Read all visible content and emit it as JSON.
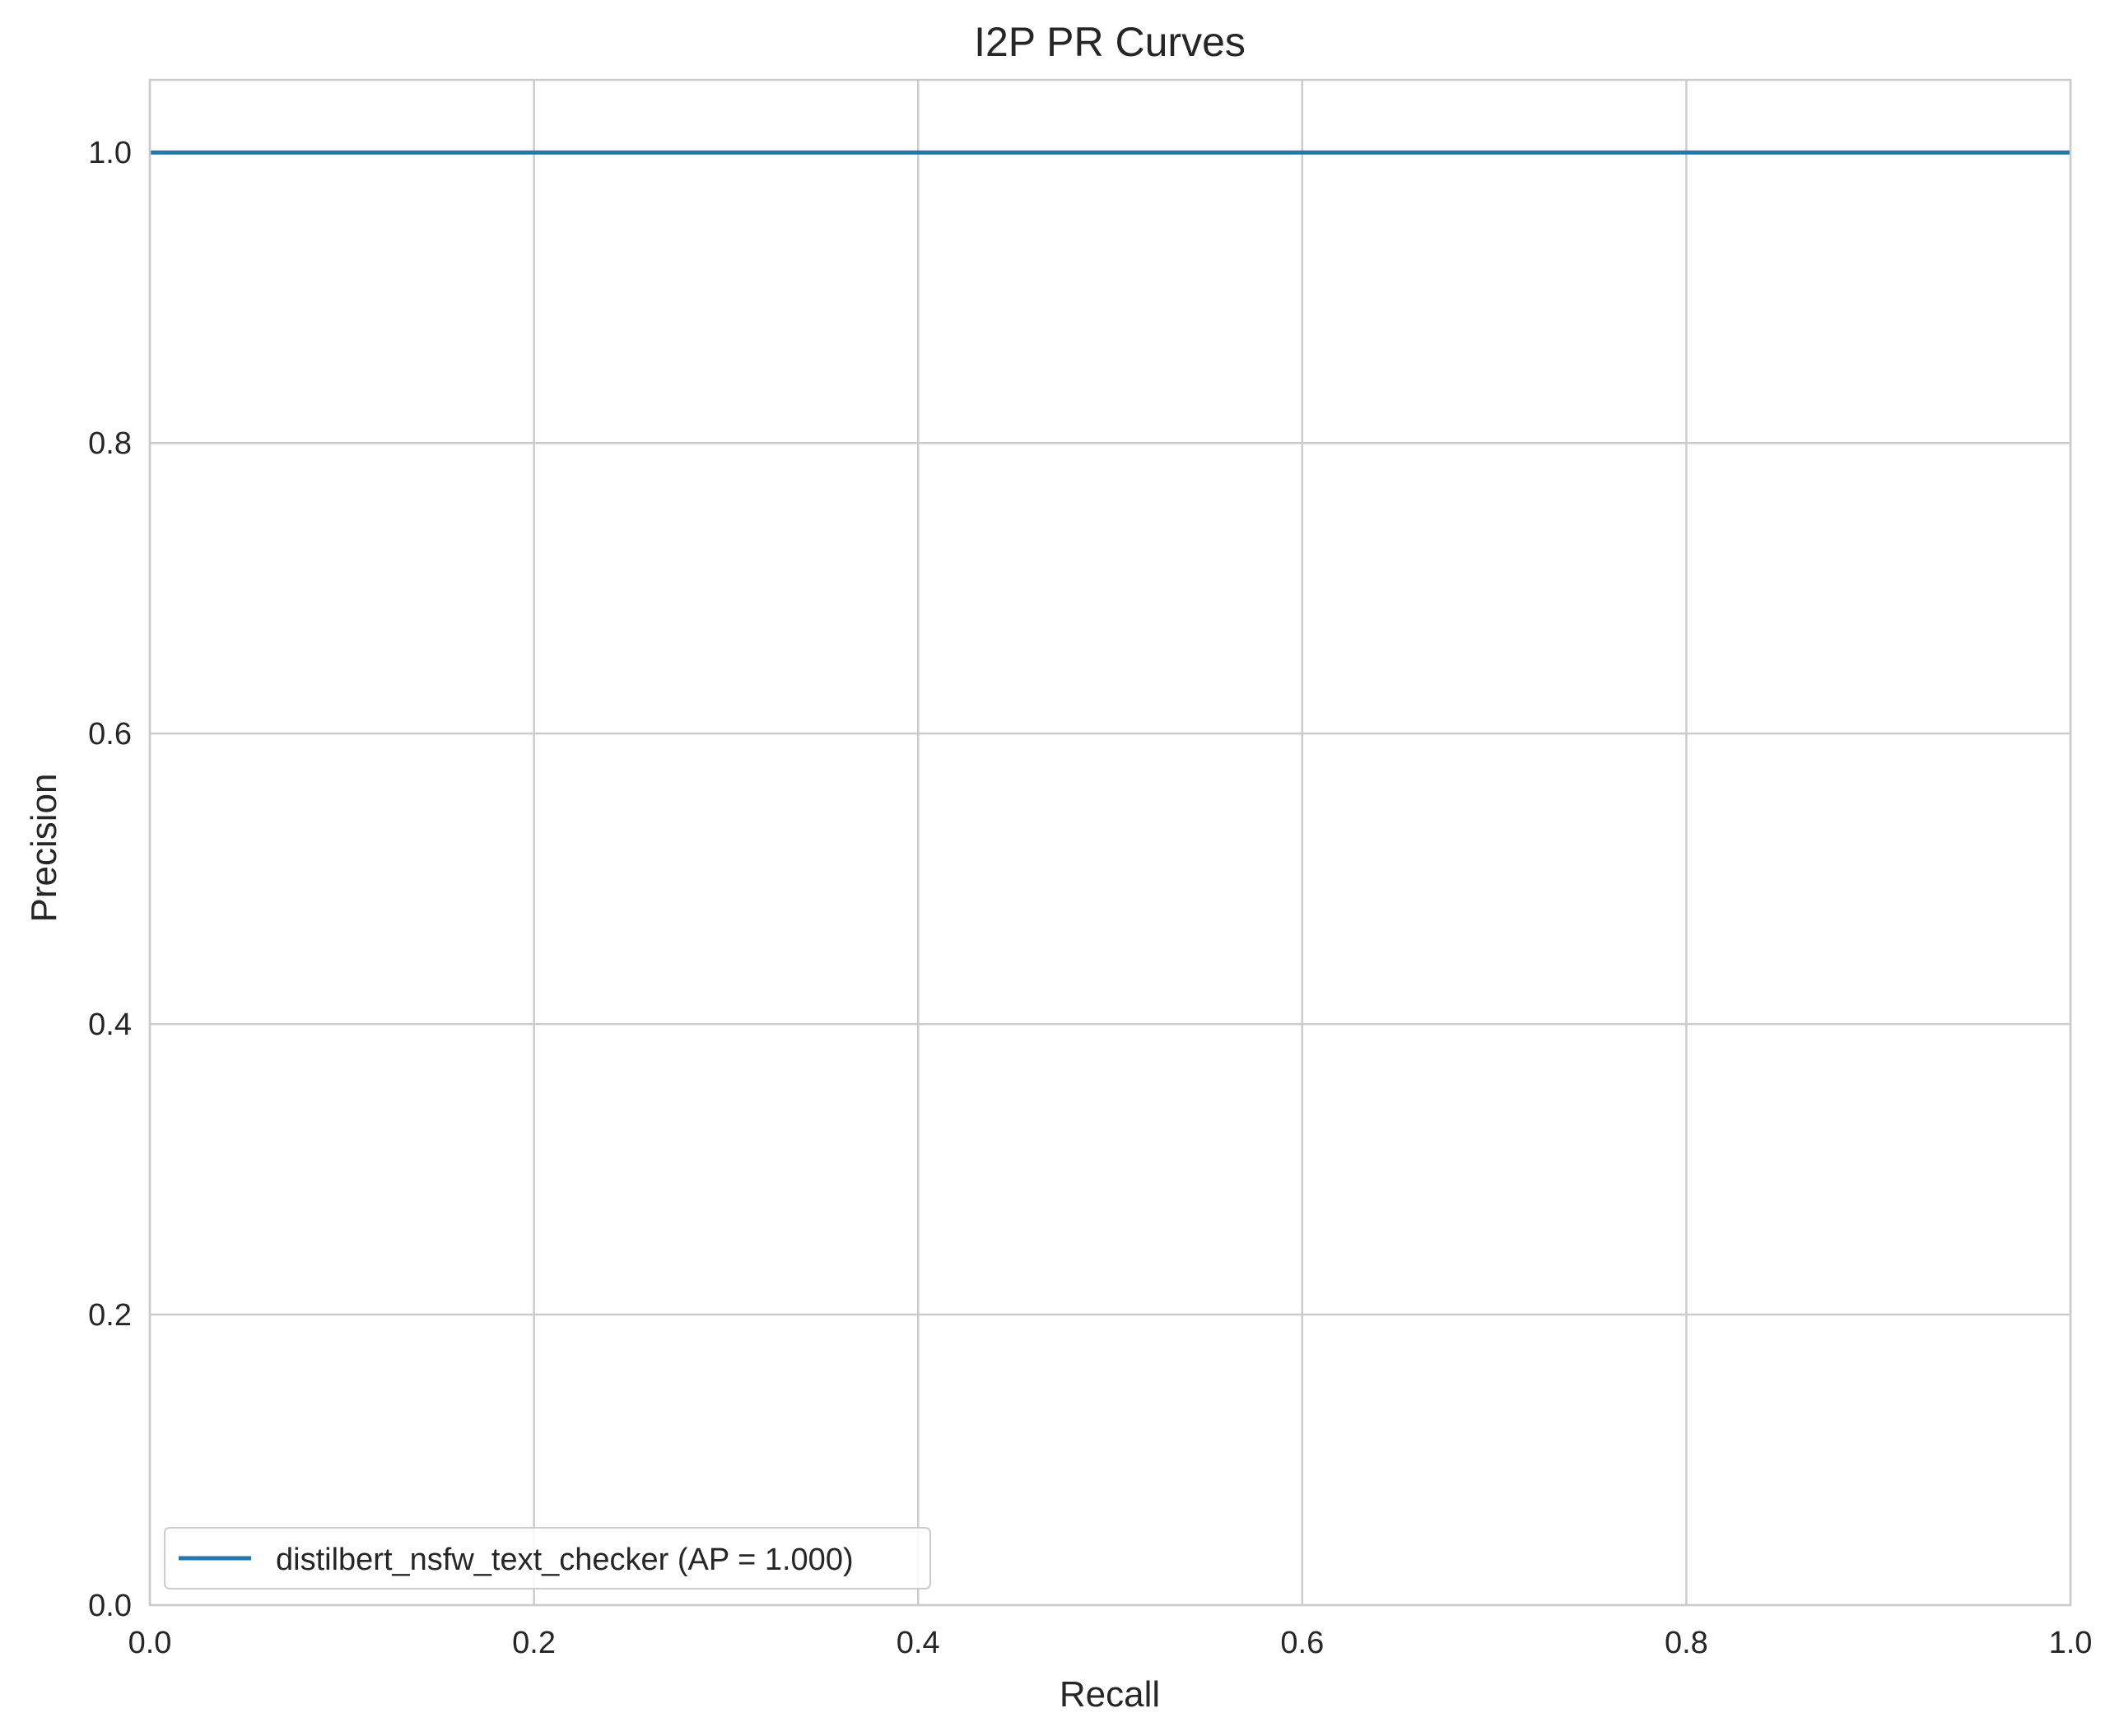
{
  "chart_data": {
    "type": "line",
    "title": "I2P PR Curves",
    "xlabel": "Recall",
    "ylabel": "Precision",
    "xlim": [
      0.0,
      1.0
    ],
    "ylim": [
      0.0,
      1.05
    ],
    "xticks": [
      0.0,
      0.2,
      0.4,
      0.6,
      0.8,
      1.0
    ],
    "xtick_labels": [
      "0.0",
      "0.2",
      "0.4",
      "0.6",
      "0.8",
      "1.0"
    ],
    "yticks": [
      0.0,
      0.2,
      0.4,
      0.6,
      0.8,
      1.0
    ],
    "ytick_labels": [
      "0.0",
      "0.2",
      "0.4",
      "0.6",
      "0.8",
      "1.0"
    ],
    "grid": true,
    "legend_position": "lower-left",
    "series": [
      {
        "name": "distilbert_nsfw_text_checker (AP = 1.000)",
        "color": "#1f77b4",
        "x": [
          0.0,
          1.0
        ],
        "y": [
          1.0,
          1.0
        ]
      }
    ]
  }
}
